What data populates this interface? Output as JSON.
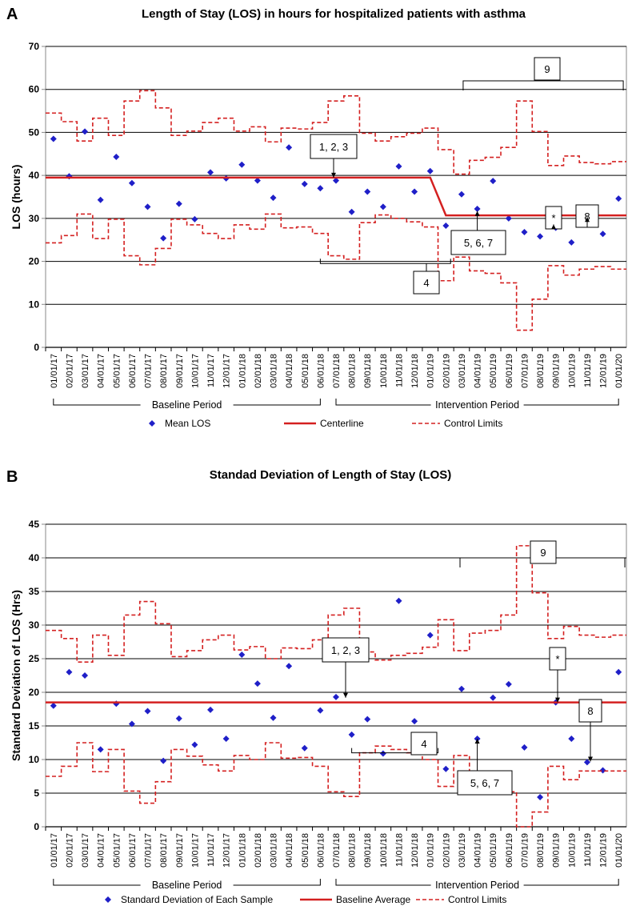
{
  "chart_data": [
    {
      "panel": "A",
      "type": "line",
      "title": "Length of Stay (LOS) in hours for hospitalized patients with asthma",
      "ylabel": "LOS (hours)",
      "xlabel": "",
      "ylim": [
        0,
        70
      ],
      "yticks": [
        0,
        10,
        20,
        30,
        40,
        50,
        60,
        70
      ],
      "grid": true,
      "categories": [
        "01/01/17",
        "02/01/17",
        "03/01/17",
        "04/01/17",
        "05/01/17",
        "06/01/17",
        "07/01/17",
        "08/01/17",
        "09/01/17",
        "10/01/17",
        "11/01/17",
        "12/01/17",
        "01/01/18",
        "02/01/18",
        "03/01/18",
        "04/01/18",
        "05/01/18",
        "06/01/18",
        "07/01/18",
        "08/01/18",
        "09/01/18",
        "10/01/18",
        "11/01/18",
        "12/01/18",
        "01/01/19",
        "02/01/19",
        "03/01/19",
        "04/01/19",
        "05/01/19",
        "06/01/19",
        "07/01/19",
        "08/01/19",
        "09/01/19",
        "10/01/19",
        "11/01/19",
        "12/01/19",
        "01/01/20"
      ],
      "series": [
        {
          "name": "Mean LOS",
          "style": "marker",
          "values": [
            48.5,
            39.8,
            50.2,
            34.3,
            44.3,
            38.2,
            32.7,
            25.4,
            33.4,
            29.8,
            40.7,
            39.3,
            42.5,
            38.8,
            34.8,
            46.5,
            38,
            37,
            38.8,
            31.5,
            36.2,
            32.7,
            42.1,
            36.2,
            41,
            28.3,
            35.6,
            32.2,
            38.7,
            30,
            26.8,
            25.8,
            27.8,
            24.4,
            28.8,
            26.4,
            34.6
          ]
        },
        {
          "name": "Centerline",
          "style": "solid",
          "values": [
            39.5,
            39.5,
            39.5,
            39.5,
            39.5,
            39.5,
            39.5,
            39.5,
            39.5,
            39.5,
            39.5,
            39.5,
            39.5,
            39.5,
            39.5,
            39.5,
            39.5,
            39.5,
            39.5,
            39.5,
            39.5,
            39.5,
            39.5,
            39.5,
            39.5,
            30.7,
            30.7,
            30.7,
            30.7,
            30.7,
            30.7,
            30.7,
            30.7,
            30.7,
            30.7,
            30.7,
            30.7
          ]
        },
        {
          "name": "Upper Control Limit",
          "style": "dashed",
          "values": [
            54.5,
            52.5,
            48,
            53.3,
            49.3,
            57.3,
            59.7,
            55.7,
            49.3,
            50.3,
            52.3,
            53.3,
            50.3,
            51.3,
            47.8,
            51,
            50.8,
            52.3,
            57.3,
            58.5,
            49.8,
            48,
            49,
            49.8,
            51,
            46,
            40.3,
            43.5,
            44.2,
            46.5,
            57.3,
            50.2,
            42.3,
            44.5,
            43,
            42.7,
            43.2
          ]
        },
        {
          "name": "Lower Control Limit",
          "style": "dashed",
          "values": [
            24.3,
            26,
            31,
            25.3,
            29.8,
            21.3,
            19.2,
            23,
            29.8,
            28.5,
            26.5,
            25.3,
            28.5,
            27.5,
            31,
            27.8,
            28,
            26.5,
            21.3,
            20.5,
            29,
            30.8,
            30,
            29.2,
            28,
            15.5,
            21,
            17.8,
            17.2,
            15,
            4,
            11.2,
            19,
            16.8,
            18.2,
            18.8,
            18.2
          ]
        }
      ],
      "legend": [
        "Mean LOS",
        "Centerline",
        "Control Limits"
      ],
      "legend_position": "bottom",
      "periods": [
        {
          "label": "Baseline Period",
          "from": "01/01/17",
          "to": "06/01/18"
        },
        {
          "label": "Intervention Period",
          "from": "07/01/18",
          "to": "01/01/20"
        }
      ],
      "annotations": [
        "1, 2, 3",
        "4",
        "5, 6, 7",
        "*",
        "8",
        "9"
      ]
    },
    {
      "panel": "B",
      "type": "line",
      "title": "Standad Deviation of Length of Stay (LOS)",
      "ylabel": "Standard Deviation of LOS (Hrs)",
      "xlabel": "",
      "ylim": [
        0,
        45
      ],
      "yticks": [
        0,
        5,
        10,
        15,
        20,
        25,
        30,
        35,
        40,
        45
      ],
      "grid": true,
      "categories": [
        "01/01/17",
        "02/01/17",
        "03/01/17",
        "04/01/17",
        "05/01/17",
        "06/01/17",
        "07/01/17",
        "08/01/17",
        "09/01/17",
        "10/01/17",
        "11/01/17",
        "12/01/17",
        "01/01/18",
        "02/01/18",
        "03/01/18",
        "04/01/18",
        "05/01/18",
        "06/01/18",
        "07/01/18",
        "08/01/18",
        "09/01/18",
        "10/01/18",
        "11/01/18",
        "12/01/18",
        "01/01/19",
        "02/01/19",
        "03/01/19",
        "04/01/19",
        "05/01/19",
        "06/01/19",
        "07/01/19",
        "08/01/19",
        "09/01/19",
        "10/01/19",
        "11/01/19",
        "12/01/19",
        "01/01/20"
      ],
      "series": [
        {
          "name": "Standard Deviation of Each Sample",
          "style": "marker",
          "values": [
            18,
            23,
            22.5,
            11.5,
            18.3,
            15.3,
            17.2,
            9.8,
            16.1,
            12.2,
            17.4,
            13.1,
            25.6,
            21.3,
            16.2,
            23.9,
            11.7,
            17.3,
            19.3,
            13.7,
            16,
            10.9,
            33.6,
            15.7,
            28.5,
            8.6,
            20.5,
            13.1,
            19.2,
            21.2,
            11.8,
            4.4,
            18.5,
            13.1,
            9.6,
            8.4,
            23
          ]
        },
        {
          "name": "Baseline Average",
          "style": "solid",
          "values": [
            18.5,
            18.5,
            18.5,
            18.5,
            18.5,
            18.5,
            18.5,
            18.5,
            18.5,
            18.5,
            18.5,
            18.5,
            18.5,
            18.5,
            18.5,
            18.5,
            18.5,
            18.5,
            18.5,
            18.5,
            18.5,
            18.5,
            18.5,
            18.5,
            18.5,
            18.5,
            18.5,
            18.5,
            18.5,
            18.5,
            18.5,
            18.5,
            18.5,
            18.5,
            18.5,
            18.5,
            18.5
          ]
        },
        {
          "name": "Upper Control Limit",
          "style": "dashed",
          "values": [
            29.2,
            28,
            24.5,
            28.5,
            25.5,
            31.5,
            33.5,
            30.2,
            25.3,
            26.2,
            27.8,
            28.5,
            26.3,
            26.8,
            25,
            26.6,
            26.5,
            27.8,
            31.5,
            32.5,
            26,
            24.8,
            25.5,
            25.8,
            26.7,
            30.8,
            26.2,
            28.8,
            29.2,
            31.5,
            41.8,
            34.8,
            28,
            29.8,
            28.5,
            28.2,
            28.5
          ]
        },
        {
          "name": "Lower Control Limit",
          "style": "dashed",
          "values": [
            7.5,
            9,
            12.5,
            8.2,
            11.5,
            5.3,
            3.5,
            6.7,
            11.5,
            10.5,
            9.2,
            8.3,
            10.6,
            10,
            12.5,
            10.2,
            10.3,
            9,
            5.2,
            4.5,
            11,
            12,
            11.5,
            11,
            10,
            6,
            10.6,
            8,
            7.5,
            5.2,
            0,
            2.2,
            9,
            7,
            8.3,
            8.3,
            8.3
          ]
        }
      ],
      "legend": [
        "Standard Deviation of Each Sample",
        "Baseline Average",
        "Control Limits"
      ],
      "legend_position": "bottom",
      "periods": [
        {
          "label": "Baseline Period",
          "from": "01/01/17",
          "to": "06/01/18"
        },
        {
          "label": "Intervention Period",
          "from": "07/01/18",
          "to": "01/01/20"
        }
      ],
      "annotations": [
        "1, 2, 3",
        "4",
        "5, 6, 7",
        "*",
        "8",
        "9"
      ]
    }
  ],
  "colors": {
    "marker": "#1f1fc8",
    "line": "#d42020",
    "grid": "#000000",
    "frame": "#8a8a8a"
  }
}
